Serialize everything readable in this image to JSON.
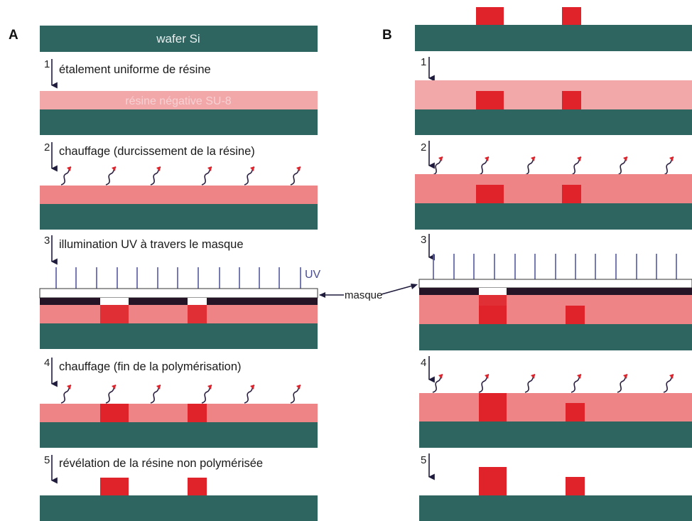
{
  "panels": {
    "a": {
      "label": "A"
    },
    "b": {
      "label": "B"
    }
  },
  "labels": {
    "wafer": "wafer Si",
    "resin": "résine négative SU-8",
    "uv": "UV",
    "mask": "masque"
  },
  "steps": [
    {
      "num": "1",
      "text": "étalement uniforme de résine"
    },
    {
      "num": "2",
      "text": "chauffage (durcissement de la résine)"
    },
    {
      "num": "3",
      "text": "illumination UV à travers le masque"
    },
    {
      "num": "4",
      "text": "chauffage (fin de la polymérisation)"
    },
    {
      "num": "5",
      "text": "révélation de la résine non polymérisée"
    }
  ],
  "colors": {
    "wafer": "#2f6561",
    "resin_uncured": "#f2a7a9",
    "resin_baked": "#ef8486",
    "resin_polymerized": "#e0222a",
    "mask": "#251326",
    "arrow": "#1e1b3c",
    "uv_ray": "#5458a0",
    "uv_tip": "#e24a7c",
    "heat_wave": "#2c2040",
    "heat_tip": "#e0222a"
  },
  "icons": {
    "step_arrow": "down-arrow-icon",
    "heat": "heat-wave-icon",
    "uv": "uv-ray-arrow-icon"
  }
}
